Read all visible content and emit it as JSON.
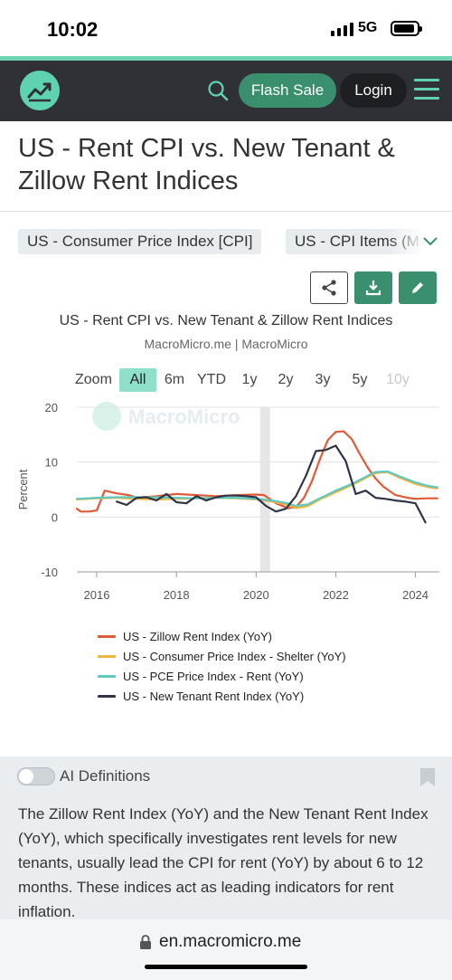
{
  "status": {
    "time": "10:02",
    "network": "5G"
  },
  "nav": {
    "flash_sale": "Flash Sale",
    "login": "Login"
  },
  "page": {
    "title": "US - Rent CPI vs. New Tenant & Zillow Rent Indices"
  },
  "categories": [
    "US - Consumer Price Index [CPI]",
    "US - CPI Items (M"
  ],
  "ranges": {
    "label": "Zoom",
    "options": [
      "All",
      "6m",
      "YTD",
      "1y",
      "2y",
      "3y",
      "5y",
      "10y"
    ],
    "selected": "All"
  },
  "chart_data": {
    "type": "line",
    "title": "US - Rent CPI vs. New Tenant & Zillow Rent Indices",
    "subtitle": "MacroMicro.me | MacroMicro",
    "watermark": "MacroMicro",
    "ylabel": "Percent",
    "ylim": [
      -10,
      20
    ],
    "yticks": [
      -10,
      0,
      10,
      20
    ],
    "xlim": [
      2015.5,
      2024.6
    ],
    "xticks": [
      "2016",
      "2018",
      "2020",
      "2022",
      "2024"
    ],
    "shaded_period": [
      2020.1,
      2020.35
    ],
    "grid": true,
    "series": [
      {
        "name": "US - Zillow Rent Index (YoY)",
        "color": "#e05a3a",
        "x": [
          2015.5,
          2015.6,
          2015.8,
          2016.0,
          2016.2,
          2016.5,
          2016.8,
          2017.0,
          2017.5,
          2018.0,
          2018.5,
          2019.0,
          2019.5,
          2020.0,
          2020.2,
          2020.5,
          2020.8,
          2021.0,
          2021.2,
          2021.4,
          2021.6,
          2021.8,
          2022.0,
          2022.2,
          2022.4,
          2022.6,
          2022.8,
          2023.0,
          2023.2,
          2023.5,
          2023.8,
          2024.0,
          2024.3,
          2024.55
        ],
        "y": [
          1.5,
          1.0,
          1.0,
          1.2,
          4.8,
          4.3,
          4.0,
          3.5,
          3.8,
          4.2,
          4.0,
          3.8,
          4.0,
          4.1,
          4.0,
          2.5,
          1.6,
          1.8,
          3.5,
          6.5,
          10.5,
          14.0,
          15.5,
          15.6,
          14.2,
          11.5,
          9.0,
          7.0,
          5.5,
          4.0,
          3.5,
          3.3,
          3.4,
          3.4
        ]
      },
      {
        "name": "US - Consumer Price Index - Shelter (YoY)",
        "color": "#f0b43c",
        "x": [
          2015.5,
          2016.0,
          2016.5,
          2017.0,
          2017.5,
          2018.0,
          2018.5,
          2019.0,
          2019.5,
          2020.0,
          2020.4,
          2020.8,
          2021.0,
          2021.3,
          2021.6,
          2022.0,
          2022.4,
          2022.8,
          2023.0,
          2023.3,
          2023.6,
          2024.0,
          2024.3,
          2024.55
        ],
        "y": [
          3.2,
          3.4,
          3.5,
          3.3,
          3.2,
          3.3,
          3.4,
          3.5,
          3.4,
          3.2,
          2.8,
          2.2,
          1.6,
          2.0,
          3.2,
          4.5,
          5.8,
          7.3,
          8.0,
          8.2,
          7.2,
          6.0,
          5.5,
          5.2
        ]
      },
      {
        "name": "US - PCE Price Index - Rent (YoY)",
        "color": "#5fc8c0",
        "x": [
          2015.5,
          2016.0,
          2016.5,
          2017.0,
          2017.5,
          2018.0,
          2018.5,
          2019.0,
          2019.5,
          2020.0,
          2020.4,
          2020.8,
          2021.0,
          2021.3,
          2021.6,
          2022.0,
          2022.4,
          2022.8,
          2023.0,
          2023.3,
          2023.6,
          2024.0,
          2024.3,
          2024.55
        ],
        "y": [
          3.3,
          3.5,
          3.6,
          3.6,
          3.6,
          3.5,
          3.4,
          3.5,
          3.5,
          3.3,
          3.0,
          2.5,
          2.0,
          2.3,
          3.4,
          4.8,
          6.0,
          7.5,
          8.2,
          8.3,
          7.4,
          6.3,
          5.7,
          5.4
        ]
      },
      {
        "name": "US - New Tenant Rent Index (YoY)",
        "color": "#2f3446",
        "x": [
          2016.5,
          2016.75,
          2017.0,
          2017.25,
          2017.5,
          2017.75,
          2018.0,
          2018.25,
          2018.5,
          2018.75,
          2019.0,
          2019.25,
          2019.5,
          2019.75,
          2020.0,
          2020.25,
          2020.5,
          2020.75,
          2021.0,
          2021.25,
          2021.5,
          2021.75,
          2022.0,
          2022.25,
          2022.5,
          2022.75,
          2023.0,
          2023.25,
          2023.5,
          2023.75,
          2024.0,
          2024.25
        ],
        "y": [
          2.8,
          2.2,
          3.5,
          3.6,
          3.0,
          4.2,
          2.7,
          2.5,
          3.8,
          3.0,
          3.6,
          3.9,
          3.9,
          3.8,
          3.6,
          2.0,
          1.0,
          1.5,
          3.8,
          7.5,
          12.0,
          12.2,
          13.0,
          10.2,
          4.2,
          4.8,
          3.5,
          3.3,
          3.0,
          2.8,
          2.5,
          -1.0
        ]
      }
    ]
  },
  "ai": {
    "label": "AI Definitions",
    "text": "The Zillow Rent Index (YoY) and the New Tenant Rent Index (YoY), which specifically investigates rent levels for new tenants, usually lead the CPI for rent (YoY) by about 6 to 12 months. These indices act as leading indicators for rent inflation."
  },
  "browser": {
    "url": "en.macromicro.me"
  },
  "icons": [
    "signal-icon",
    "battery-icon",
    "logo-icon",
    "search-icon",
    "menu-icon",
    "chevron-down-icon",
    "share-icon",
    "download-icon",
    "edit-icon",
    "bookmark-icon",
    "lock-icon"
  ]
}
